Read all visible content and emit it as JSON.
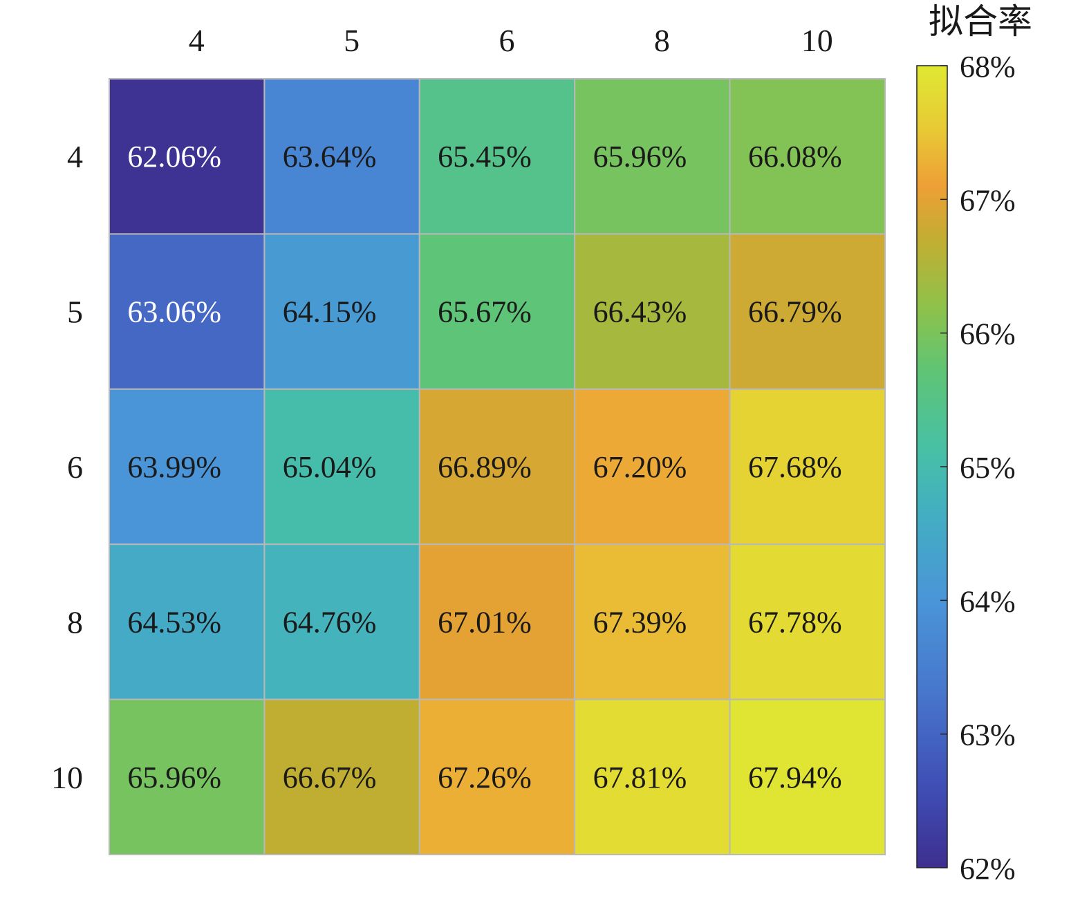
{
  "chart_data": {
    "type": "heatmap",
    "x_categories": [
      "4",
      "5",
      "6",
      "8",
      "10"
    ],
    "y_categories": [
      "4",
      "5",
      "6",
      "8",
      "10"
    ],
    "values": [
      [
        62.06,
        63.64,
        65.45,
        65.96,
        66.08
      ],
      [
        63.06,
        64.15,
        65.67,
        66.43,
        66.79
      ],
      [
        63.99,
        65.04,
        66.89,
        67.2,
        67.68
      ],
      [
        64.53,
        64.76,
        67.01,
        67.39,
        67.78
      ],
      [
        65.96,
        66.67,
        67.26,
        67.81,
        67.94
      ]
    ],
    "cell_labels": [
      [
        "62.06%",
        "63.64%",
        "65.45%",
        "65.96%",
        "66.08%"
      ],
      [
        "63.06%",
        "64.15%",
        "65.67%",
        "66.43%",
        "66.79%"
      ],
      [
        "63.99%",
        "65.04%",
        "66.89%",
        "67.20%",
        "67.68%"
      ],
      [
        "64.53%",
        "64.76%",
        "67.01%",
        "67.39%",
        "67.78%"
      ],
      [
        "65.96%",
        "66.67%",
        "67.26%",
        "67.81%",
        "67.94%"
      ]
    ],
    "x_axis_position": "top",
    "colorbar": {
      "title": "拟合率",
      "range": [
        62,
        68
      ],
      "ticks": [
        62,
        63,
        64,
        65,
        66,
        67,
        68
      ],
      "tick_labels": [
        "62%",
        "63%",
        "64%",
        "65%",
        "66%",
        "67%",
        "68%"
      ],
      "colormap": "parula"
    },
    "grid": true
  },
  "colors": {
    "cell_border": "#b8b8b8",
    "dark_text": "#1a1a1a",
    "light_text": "#ffffff"
  }
}
